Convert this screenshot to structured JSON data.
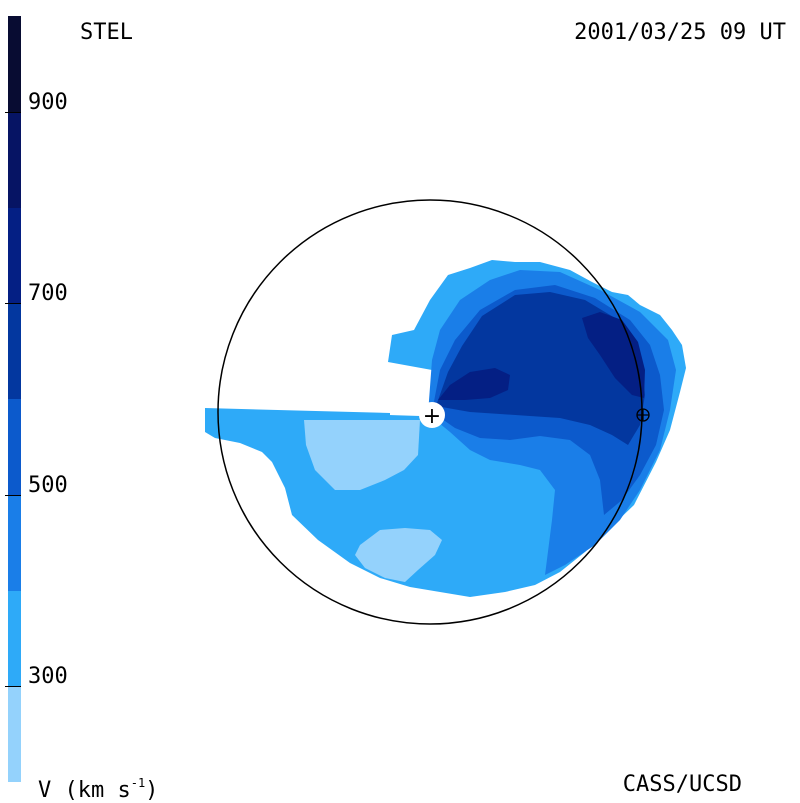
{
  "header": {
    "observatory": "STEL",
    "datetime": "2001/03/25 09 UT"
  },
  "footer": {
    "credit": "CASS/UCSD",
    "units_base": "V (km s",
    "units_sup": "-1",
    "units_close": ")"
  },
  "colorbar": {
    "quantity": "V",
    "segments": [
      {
        "from": 200,
        "to": 300,
        "color": "#94d2fc"
      },
      {
        "from": 300,
        "to": 400,
        "color": "#2eaaf8"
      },
      {
        "from": 400,
        "to": 500,
        "color": "#1a7ee8"
      },
      {
        "from": 500,
        "to": 600,
        "color": "#0c5acc"
      },
      {
        "from": 600,
        "to": 700,
        "color": "#03379f"
      },
      {
        "from": 700,
        "to": 800,
        "color": "#041f84"
      },
      {
        "from": 800,
        "to": 900,
        "color": "#061464"
      },
      {
        "from": 900,
        "to": 1000,
        "color": "#080c32"
      }
    ],
    "ticks": [
      {
        "value": 300,
        "label": "300"
      },
      {
        "value": 500,
        "label": "500"
      },
      {
        "value": 700,
        "label": "700"
      },
      {
        "value": 900,
        "label": "900"
      }
    ],
    "range": [
      200,
      1000
    ]
  },
  "map": {
    "sun_marker": "+",
    "earth_marker": "⊕"
  }
}
